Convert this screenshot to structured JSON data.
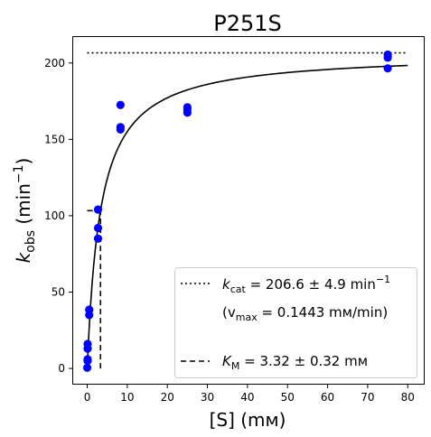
{
  "chart_data": {
    "type": "scatter",
    "title": "P251S",
    "xlabel": "[S] (mм)",
    "ylabel": {
      "base": "k",
      "sub": "obs",
      "unit_pre": " (min",
      "unit_sup": "−1",
      "unit_post": ")"
    },
    "xlim": [
      -3.5,
      84.0
    ],
    "ylim": [
      -10.0,
      217.0
    ],
    "xticks": [
      0,
      10,
      20,
      30,
      40,
      50,
      60,
      70,
      80
    ],
    "yticks": [
      0,
      50,
      100,
      150,
      200
    ],
    "grid": false,
    "legend_position": "lower-right",
    "point_color": "#0000ff",
    "points": [
      {
        "x": 0.0,
        "y": 0.5
      },
      {
        "x": 0.1,
        "y": 5.0
      },
      {
        "x": 0.1,
        "y": 6.0
      },
      {
        "x": 0.1,
        "y": 13.0
      },
      {
        "x": 0.1,
        "y": 16.0
      },
      {
        "x": 0.5,
        "y": 35.0
      },
      {
        "x": 0.5,
        "y": 38.5
      },
      {
        "x": 2.7,
        "y": 85.0
      },
      {
        "x": 2.7,
        "y": 92.0
      },
      {
        "x": 2.7,
        "y": 104.0
      },
      {
        "x": 8.3,
        "y": 156.5
      },
      {
        "x": 8.3,
        "y": 158.0
      },
      {
        "x": 8.3,
        "y": 172.5
      },
      {
        "x": 25.0,
        "y": 167.5
      },
      {
        "x": 25.0,
        "y": 169.5
      },
      {
        "x": 25.0,
        "y": 171.0
      },
      {
        "x": 75.0,
        "y": 196.5
      },
      {
        "x": 75.0,
        "y": 203.5
      },
      {
        "x": 75.0,
        "y": 205.5
      }
    ],
    "fit": {
      "kcat": 206.6,
      "KM": 3.32,
      "x_range": [
        0,
        80
      ]
    },
    "kcat_line": {
      "y": 206.6,
      "x_range": [
        0,
        80
      ]
    },
    "km_line": {
      "x": 3.32,
      "y_half": 103.3
    },
    "legend": [
      {
        "style": "dotted",
        "k_base": "k",
        "k_sub": "cat",
        "text": " = 206.6 ± 4.9 min",
        "sup": "−1"
      },
      {
        "style": "none",
        "pre": "(v",
        "sub": "max",
        "text": " = 0.1443 mм/min)"
      },
      {
        "style": "dashed",
        "k_base": "K",
        "k_sub": "M",
        "text": " = 3.32 ± 0.32 mм"
      }
    ]
  }
}
